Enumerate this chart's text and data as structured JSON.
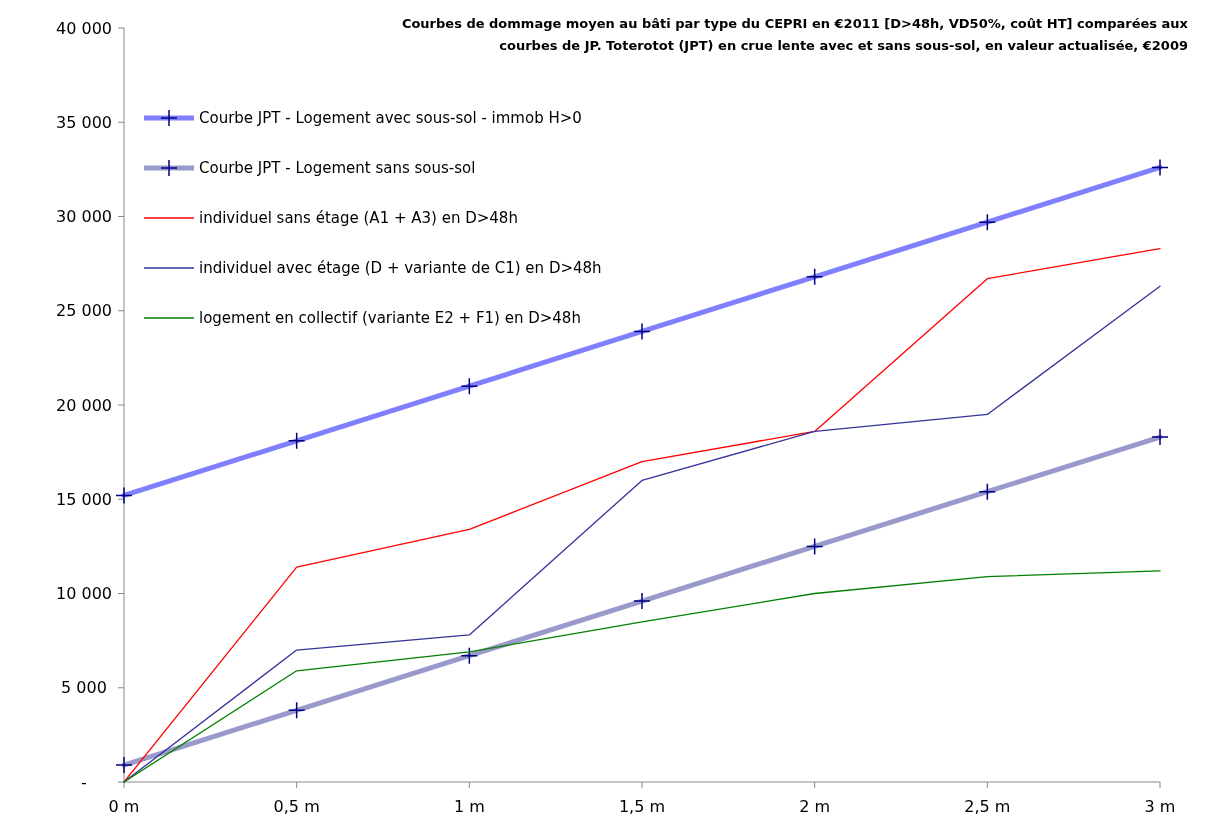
{
  "chart_data": {
    "type": "line",
    "title": "Courbes de dommage moyen au bâti par type du CEPRI en €2011 [D>48h, VD50%, coût HT] comparées aux courbes de JP. Toterotot (JPT) en crue lente avec et sans sous-sol, en valeur actualisée, €2009",
    "categories": [
      "0 m",
      "0,5 m",
      "1 m",
      "1,5 m",
      "2 m",
      "2,5 m",
      "3 m"
    ],
    "series": [
      {
        "name": "Courbe JPT - Logement avec sous-sol - immob H>0",
        "color": "#8080ff",
        "marker": "cross",
        "values": [
          15200,
          18100,
          21000,
          23900,
          26800,
          29700,
          32600
        ]
      },
      {
        "name": "Courbe JPT - Logement sans sous-sol",
        "color": "#9999cc",
        "marker": "cross",
        "values": [
          900,
          3800,
          6700,
          9600,
          12500,
          15400,
          18300
        ]
      },
      {
        "name": "individuel sans étage (A1 + A3) en D>48h",
        "color": "#ff0000",
        "values": [
          0,
          11400,
          13400,
          17000,
          18600,
          26700,
          28300
        ]
      },
      {
        "name": "individuel avec étage (D + variante de C1) en D>48h",
        "color": "#333399",
        "values": [
          0,
          7000,
          7800,
          16000,
          18600,
          19500,
          26300
        ]
      },
      {
        "name": "logement en collectif (variante E2 + F1) en D>48h",
        "color": "#008000",
        "values": [
          0,
          5900,
          6900,
          8500,
          10000,
          10900,
          11200
        ]
      }
    ],
    "ylim": [
      0,
      40000
    ],
    "yticks": [
      {
        "value": 0,
        "label": "-"
      },
      {
        "value": 5000,
        "label": "5 000"
      },
      {
        "value": 10000,
        "label": "10 000"
      },
      {
        "value": 15000,
        "label": "15 000"
      },
      {
        "value": 20000,
        "label": "20 000"
      },
      {
        "value": 25000,
        "label": "25 000"
      },
      {
        "value": 30000,
        "label": "30 000"
      },
      {
        "value": 35000,
        "label": "35 000"
      },
      {
        "value": 40000,
        "label": "40 000"
      }
    ],
    "grid": false,
    "legend": "top left"
  }
}
